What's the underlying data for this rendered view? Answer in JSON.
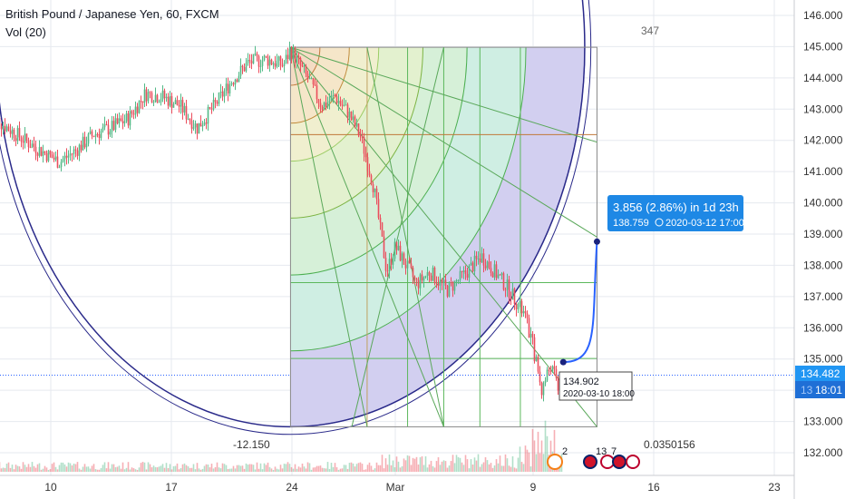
{
  "header": {
    "symbol_title": "British Pound / Japanese Yen, 60, FXCM",
    "volume_label": "Vol (20)"
  },
  "colors": {
    "up": "#53b987",
    "down": "#eb4d5c",
    "grid": "#e6e9ef",
    "axis_text": "#333333",
    "price_line": "#2962ff",
    "badge_bg": "#2196f3",
    "badge_alt": "#1e88e5"
  },
  "chart_data": {
    "type": "candlestick",
    "title": "British Pound / Japanese Yen, 60, FXCM",
    "y_ticks": [
      "146.000",
      "145.000",
      "144.000",
      "143.000",
      "142.000",
      "141.000",
      "140.000",
      "139.000",
      "138.000",
      "137.000",
      "136.000",
      "135.000",
      "134.000",
      "133.000",
      "132.000"
    ],
    "ylim": [
      131.7,
      146.3
    ],
    "x_ticks": [
      {
        "label": "10",
        "date": "2020-02-10"
      },
      {
        "label": "17",
        "date": "2020-02-17"
      },
      {
        "label": "24",
        "date": "2020-02-24"
      },
      {
        "label": "Mar",
        "date": "2020-03-01"
      },
      {
        "label": "9",
        "date": "2020-03-09"
      },
      {
        "label": "16",
        "date": "2020-03-16"
      },
      {
        "label": "23",
        "date": "2020-03-23"
      }
    ],
    "price_path": [
      {
        "t": "2020-02-06 12:00",
        "p": 142.8
      },
      {
        "t": "2020-02-07 12:00",
        "p": 142.4
      },
      {
        "t": "2020-02-08 12:00",
        "p": 142.0
      },
      {
        "t": "2020-02-10 12:00",
        "p": 141.3
      },
      {
        "t": "2020-02-11 12:00",
        "p": 141.7
      },
      {
        "t": "2020-02-12 12:00",
        "p": 142.2
      },
      {
        "t": "2020-02-13 12:00",
        "p": 142.4
      },
      {
        "t": "2020-02-14 12:00",
        "p": 142.7
      },
      {
        "t": "2020-02-15 12:00",
        "p": 143.5
      },
      {
        "t": "2020-02-16 12:00",
        "p": 143.4
      },
      {
        "t": "2020-02-17 12:00",
        "p": 143.1
      },
      {
        "t": "2020-02-18 12:00",
        "p": 142.4
      },
      {
        "t": "2020-02-19 12:00",
        "p": 143.1
      },
      {
        "t": "2020-02-20 12:00",
        "p": 143.9
      },
      {
        "t": "2020-02-21 12:00",
        "p": 144.5
      },
      {
        "t": "2020-02-22 12:00",
        "p": 144.6
      },
      {
        "t": "2020-02-23 12:00",
        "p": 144.4
      },
      {
        "t": "2020-02-23 22:00",
        "p": 144.9
      },
      {
        "t": "2020-02-25 00:00",
        "p": 143.9
      },
      {
        "t": "2020-02-25 18:00",
        "p": 143.1
      },
      {
        "t": "2020-02-26 12:00",
        "p": 143.4
      },
      {
        "t": "2020-02-27 06:00",
        "p": 142.9
      },
      {
        "t": "2020-02-28 00:00",
        "p": 142.1
      },
      {
        "t": "2020-02-28 18:00",
        "p": 140.5
      },
      {
        "t": "2020-02-29 12:00",
        "p": 137.8
      },
      {
        "t": "2020-03-01 00:00",
        "p": 138.6
      },
      {
        "t": "2020-03-02 06:00",
        "p": 137.4
      },
      {
        "t": "2020-03-03 00:00",
        "p": 137.8
      },
      {
        "t": "2020-03-04 00:00",
        "p": 137.2
      },
      {
        "t": "2020-03-05 00:00",
        "p": 137.7
      },
      {
        "t": "2020-03-06 00:00",
        "p": 138.3
      },
      {
        "t": "2020-03-06 18:00",
        "p": 137.8
      },
      {
        "t": "2020-03-07 12:00",
        "p": 137.3
      },
      {
        "t": "2020-03-08 12:00",
        "p": 136.4
      },
      {
        "t": "2020-03-09 00:00",
        "p": 135.4
      },
      {
        "t": "2020-03-09 12:00",
        "p": 134.0
      },
      {
        "t": "2020-03-10 00:00",
        "p": 134.8
      },
      {
        "t": "2020-03-10 12:00",
        "p": 134.1
      },
      {
        "t": "2020-03-10 18:00",
        "p": 134.5
      }
    ],
    "annotations": {
      "gann_box_top_left_label": "-12.150",
      "gann_box_top_right_label": "347",
      "gann_box_bottom_right_label": "0.0350156",
      "gann_box_left_time": "2020-02-23 22:00",
      "gann_box_right_time": "2020-03-12 17:00",
      "gann_box_top_price": 144.98,
      "gann_box_bottom_price": 132.83
    },
    "projection": {
      "start": {
        "price": 134.902,
        "time": "2020-03-10 18:00"
      },
      "end": {
        "price": 138.759,
        "time": "2020-03-12 17:00"
      }
    }
  },
  "price_scale": {
    "current_price": "134.482",
    "countdown": "18:01",
    "hidden_tick_fragment": "13"
  },
  "measure_badge": {
    "line1": "3.856 (2.86%) in 1d 23h",
    "line2_price": "138.759",
    "line2_time": "2020-03-12  17:00"
  },
  "start_point_label": {
    "price": "134.902",
    "time": "2020-03-10 18:00"
  },
  "events": [
    {
      "label": "2",
      "date": "2020-03-11 12:00",
      "kind": "dividend"
    },
    {
      "label": "13",
      "date": "2020-03-13 00:00",
      "kind": "flags"
    },
    {
      "label": "7",
      "date": "2020-03-13 18:00",
      "kind": "flags"
    },
    {
      "label": "",
      "date": "2020-03-14 12:00",
      "kind": "flags"
    }
  ]
}
